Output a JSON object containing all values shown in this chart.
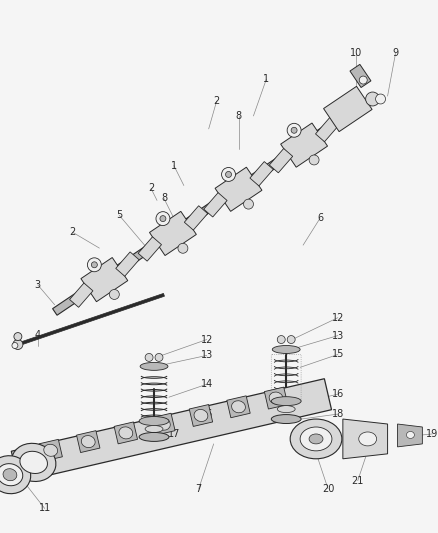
{
  "bg_color": "#f5f5f5",
  "dark": "#2a2a2a",
  "mid": "#555555",
  "light": "#888888",
  "fill_light": "#d8d8d8",
  "fill_mid": "#b8b8b8",
  "fill_dark": "#909090",
  "white": "#f0f0f0",
  "label_fs": 7.0,
  "lw_part": 0.8,
  "lw_leader": 0.5,
  "fig_w": 4.38,
  "fig_h": 5.33,
  "dpi": 100
}
